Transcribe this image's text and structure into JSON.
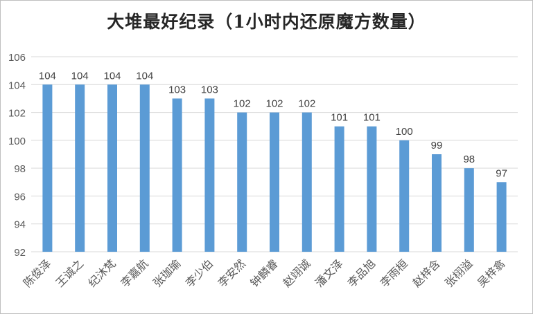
{
  "chart_data": {
    "type": "bar",
    "title": "大堆最好纪录（1小时内还原魔方数量）",
    "xlabel": "",
    "ylabel": "",
    "ylim": [
      92,
      106
    ],
    "yticks": [
      92,
      94,
      96,
      98,
      100,
      102,
      104,
      106
    ],
    "grid": true,
    "legend": "none",
    "categories": [
      "陈俊泽",
      "王诚之",
      "纪沐梵",
      "李嘉航",
      "张珈瑜",
      "李少伯",
      "李安然",
      "钟麟睿",
      "赵翊诚",
      "潘文泽",
      "李品旭",
      "李雨桓",
      "赵梓含",
      "张栩溢",
      "吴梓翕"
    ],
    "values": [
      104,
      104,
      104,
      104,
      103,
      103,
      102,
      102,
      102,
      101,
      101,
      100,
      99,
      98,
      97
    ],
    "colors": {
      "bar": "#5b9bd5",
      "grid": "#d9d9d9",
      "text": "#404040",
      "axis_label": "#595959"
    }
  }
}
